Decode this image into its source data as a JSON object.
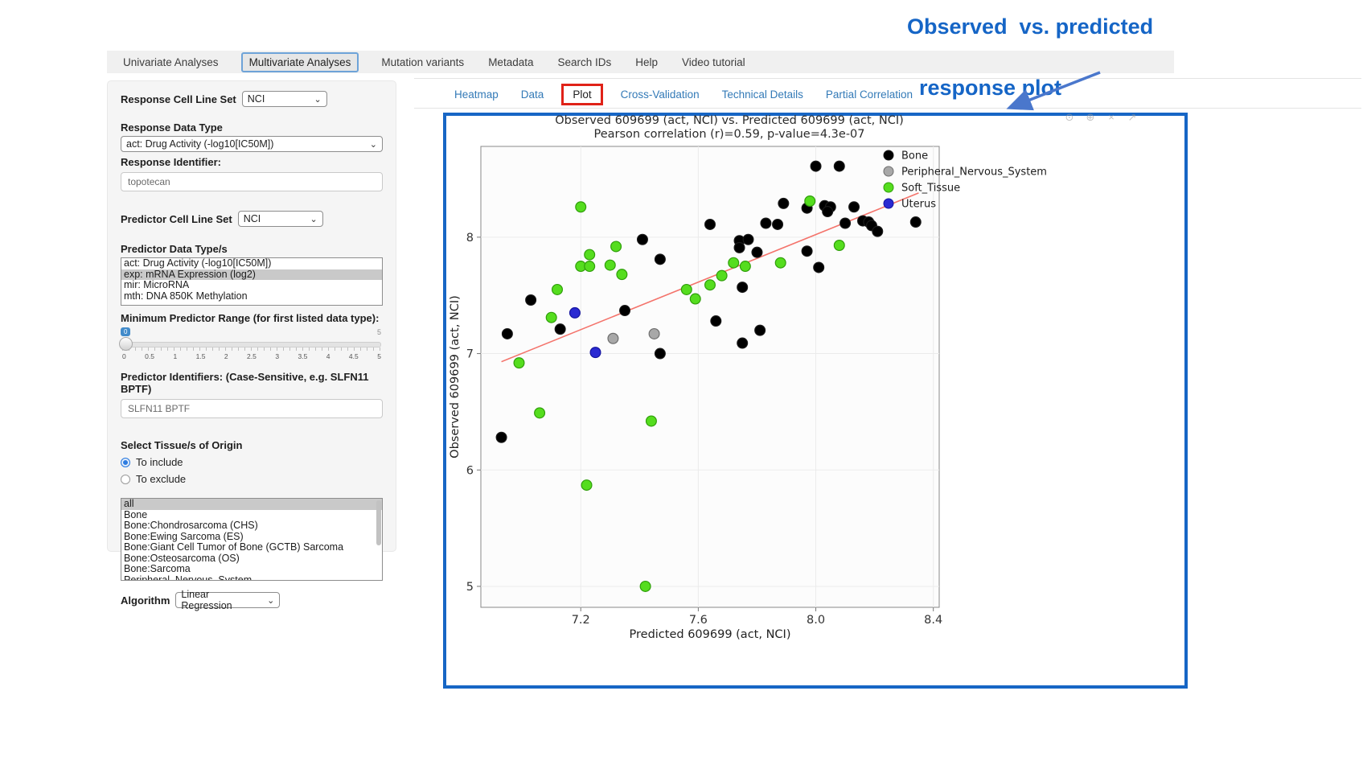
{
  "nav": {
    "tabs": [
      {
        "label": "Univariate Analyses",
        "active": false
      },
      {
        "label": "Multivariate Analyses",
        "active": true
      },
      {
        "label": "Mutation variants",
        "active": false
      },
      {
        "label": "Metadata",
        "active": false
      },
      {
        "label": "Search IDs",
        "active": false
      },
      {
        "label": "Help",
        "active": false
      },
      {
        "label": "Video tutorial",
        "active": false
      }
    ]
  },
  "sidebar": {
    "response_cell_line_set": {
      "label": "Response Cell Line Set",
      "value": "NCI"
    },
    "response_data_type": {
      "label": "Response Data Type",
      "value": "act: Drug Activity (-log10[IC50M])"
    },
    "response_identifier": {
      "label": "Response Identifier:",
      "value": "topotecan"
    },
    "predictor_cell_line_set": {
      "label": "Predictor Cell Line Set",
      "value": "NCI"
    },
    "predictor_data_types": {
      "label": "Predictor Data Type/s",
      "options": [
        "act: Drug Activity (-log10[IC50M])",
        "exp: mRNA Expression (log2)",
        "mir: MicroRNA",
        "mth: DNA 850K Methylation"
      ],
      "selected": "exp: mRNA Expression (log2)"
    },
    "min_predictor_range": {
      "label": "Minimum Predictor Range (for first listed data type):",
      "value": "0",
      "max_label": "5",
      "ticks": [
        "0",
        "0.5",
        "1",
        "1.5",
        "2",
        "2.5",
        "3",
        "3.5",
        "4",
        "4.5",
        "5"
      ]
    },
    "predictor_identifiers": {
      "label": "Predictor Identifiers: (Case-Sensitive, e.g. SLFN11 BPTF)",
      "value": "SLFN11 BPTF"
    },
    "tissue_origin": {
      "label": "Select Tissue/s of Origin",
      "radios": [
        {
          "label": "To include",
          "selected": true
        },
        {
          "label": "To exclude",
          "selected": false
        }
      ],
      "options": [
        "all",
        "Bone",
        "Bone:Chondrosarcoma (CHS)",
        "Bone:Ewing Sarcoma (ES)",
        "Bone:Giant Cell Tumor of Bone (GCTB) Sarcoma",
        "Bone:Osteosarcoma (OS)",
        "Bone:Sarcoma",
        "Peripheral_Nervous_System"
      ],
      "selected": "all"
    },
    "algorithm": {
      "label": "Algorithm",
      "value": "Linear Regression"
    }
  },
  "subtabs": {
    "items": [
      {
        "label": "Heatmap",
        "highlighted": false
      },
      {
        "label": "Data",
        "highlighted": false
      },
      {
        "label": "Plot",
        "highlighted": true
      },
      {
        "label": "Cross-Validation",
        "highlighted": false
      },
      {
        "label": "Technical Details",
        "highlighted": false
      },
      {
        "label": "Partial Correlation",
        "highlighted": false
      }
    ],
    "link_color": "#337ab7",
    "highlight_color": "#e02218"
  },
  "annotation": {
    "line1": "Observed  vs. predicted",
    "line2": "response plot",
    "color": "#1565c6",
    "arrow_color": "#4a77cc"
  },
  "panel": {
    "border_color": "#1766c5"
  },
  "modebar": {
    "icons": [
      {
        "name": "camera-icon",
        "glyph": "⊙"
      },
      {
        "name": "zoom-icon",
        "glyph": "⊕"
      },
      {
        "name": "close-icon",
        "glyph": "×"
      },
      {
        "name": "expand-icon",
        "glyph": "↗"
      }
    ]
  },
  "chart_data": {
    "type": "scatter",
    "title": "Observed 609699 (act, NCI) vs. Predicted 609699 (act, NCI)",
    "subtitle": "Pearson correlation (r)=0.59, p-value=4.3e-07",
    "xlabel": "Predicted 609699 (act, NCI)",
    "ylabel": "Observed 609699 (act, NCI)",
    "xlim": [
      6.86,
      8.42
    ],
    "ylim": [
      4.82,
      8.78
    ],
    "x_ticks": [
      "7.2",
      "7.6",
      "8.0",
      "8.4"
    ],
    "y_ticks": [
      "5",
      "6",
      "7",
      "8"
    ],
    "grid": true,
    "legend_position": "right",
    "regression_line": {
      "x1": 6.93,
      "y1": 6.93,
      "x2": 8.35,
      "y2": 8.38,
      "color": "#f4736b"
    },
    "series": [
      {
        "name": "Bone",
        "color": "#000000",
        "stroke": "#1a1a1a",
        "points": [
          [
            8.0,
            8.61
          ],
          [
            8.08,
            8.61
          ],
          [
            7.89,
            8.29
          ],
          [
            7.97,
            8.25
          ],
          [
            8.03,
            8.27
          ],
          [
            8.05,
            8.26
          ],
          [
            8.04,
            8.22
          ],
          [
            8.13,
            8.26
          ],
          [
            7.64,
            8.11
          ],
          [
            7.83,
            8.12
          ],
          [
            7.87,
            8.11
          ],
          [
            8.1,
            8.12
          ],
          [
            8.16,
            8.14
          ],
          [
            8.18,
            8.13
          ],
          [
            8.19,
            8.1
          ],
          [
            8.21,
            8.05
          ],
          [
            8.34,
            8.13
          ],
          [
            7.41,
            7.98
          ],
          [
            7.74,
            7.97
          ],
          [
            7.77,
            7.98
          ],
          [
            7.74,
            7.91
          ],
          [
            7.8,
            7.87
          ],
          [
            7.97,
            7.88
          ],
          [
            7.47,
            7.81
          ],
          [
            8.01,
            7.74
          ],
          [
            7.75,
            7.57
          ],
          [
            7.03,
            7.46
          ],
          [
            7.35,
            7.37
          ],
          [
            7.66,
            7.28
          ],
          [
            7.13,
            7.21
          ],
          [
            6.95,
            7.17
          ],
          [
            7.81,
            7.2
          ],
          [
            7.75,
            7.09
          ],
          [
            7.47,
            7.0
          ],
          [
            6.93,
            6.28
          ]
        ]
      },
      {
        "name": "Peripheral_Nervous_System",
        "color": "#a8a8a8",
        "stroke": "#6e6e6e",
        "points": [
          [
            7.45,
            7.17
          ],
          [
            7.31,
            7.13
          ]
        ]
      },
      {
        "name": "Soft_Tissue",
        "color": "#55dd1e",
        "stroke": "#2f9e0a",
        "points": [
          [
            7.2,
            8.26
          ],
          [
            7.98,
            8.31
          ],
          [
            7.32,
            7.92
          ],
          [
            8.08,
            7.93
          ],
          [
            7.23,
            7.85
          ],
          [
            7.3,
            7.76
          ],
          [
            7.2,
            7.75
          ],
          [
            7.23,
            7.75
          ],
          [
            7.34,
            7.68
          ],
          [
            7.72,
            7.78
          ],
          [
            7.76,
            7.75
          ],
          [
            7.88,
            7.78
          ],
          [
            7.68,
            7.67
          ],
          [
            7.64,
            7.59
          ],
          [
            7.56,
            7.55
          ],
          [
            7.12,
            7.55
          ],
          [
            7.59,
            7.47
          ],
          [
            7.1,
            7.31
          ],
          [
            6.99,
            6.92
          ],
          [
            7.06,
            6.49
          ],
          [
            7.44,
            6.42
          ],
          [
            7.22,
            5.87
          ],
          [
            7.42,
            5.0
          ]
        ]
      },
      {
        "name": "Uterus",
        "color": "#2a2ad2",
        "stroke": "#1414a0",
        "points": [
          [
            7.18,
            7.35
          ],
          [
            7.25,
            7.01
          ]
        ]
      }
    ]
  }
}
